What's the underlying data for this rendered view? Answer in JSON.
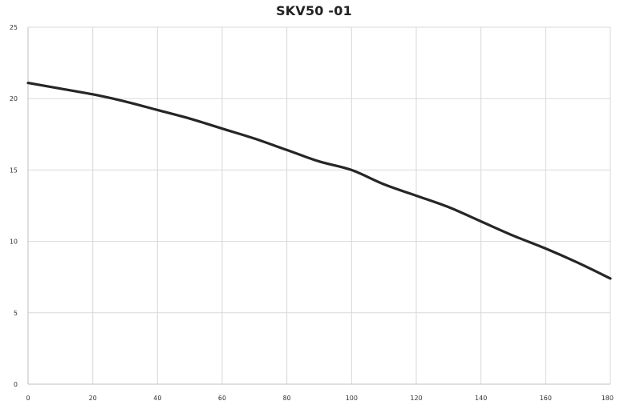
{
  "chart_data": {
    "type": "line",
    "title": "SKV50 -01",
    "xlabel": "",
    "ylabel": "",
    "xlim": [
      0,
      180
    ],
    "ylim": [
      0,
      25
    ],
    "x_ticks": [
      0,
      20,
      40,
      60,
      80,
      100,
      120,
      140,
      160,
      180
    ],
    "y_ticks": [
      0,
      5,
      10,
      15,
      20,
      25
    ],
    "x_tick_labels": [
      "0",
      "20",
      "40",
      "60",
      "80",
      "100",
      "120",
      "140",
      "160",
      "180"
    ],
    "y_tick_labels": [
      "0",
      "5",
      "10",
      "15",
      "20",
      "25"
    ],
    "grid": true,
    "legend": "none",
    "series": [
      {
        "color": "#262626",
        "x": [
          0,
          10,
          20,
          30,
          40,
          50,
          60,
          70,
          80,
          90,
          100,
          110,
          120,
          130,
          140,
          150,
          160,
          170,
          180
        ],
        "y": [
          21.1,
          20.7,
          20.3,
          19.8,
          19.2,
          18.6,
          17.9,
          17.2,
          16.4,
          15.6,
          15.0,
          14.0,
          13.2,
          12.4,
          11.4,
          10.4,
          9.5,
          8.5,
          7.4
        ]
      }
    ]
  }
}
